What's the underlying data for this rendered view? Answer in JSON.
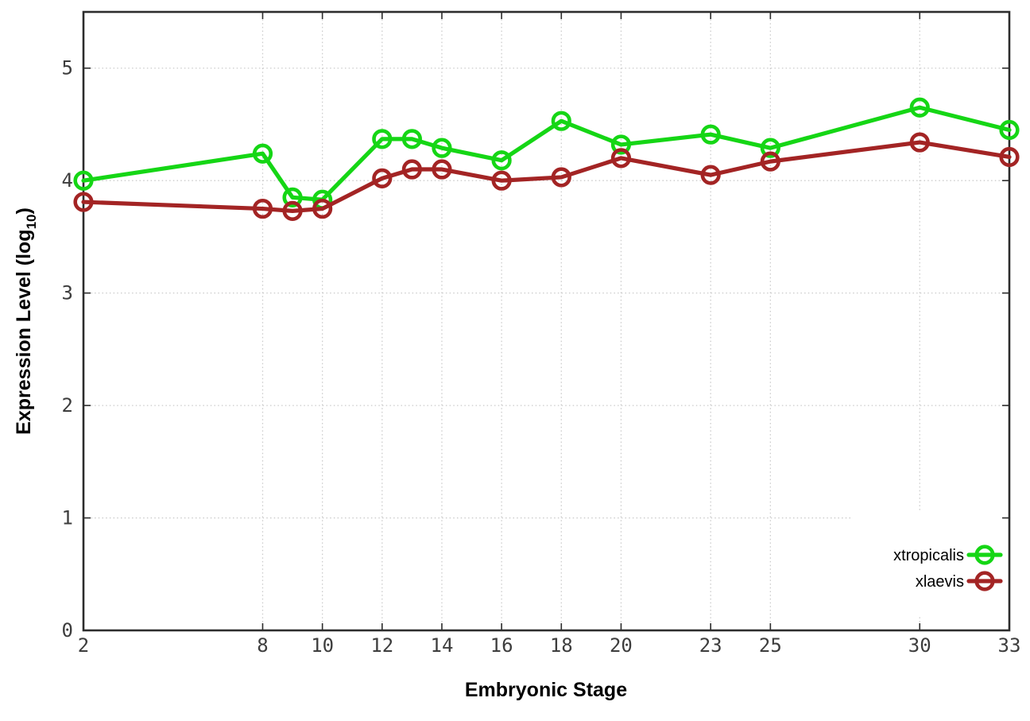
{
  "figure": {
    "background": "#ffffff"
  },
  "style": {
    "axis_color": "#2d2d2d",
    "tick_label_color": "#3d3d3d",
    "grid_color": "#cbcbcb",
    "label_color": "#000000",
    "legend_background": "#ffffff"
  },
  "chart_data": {
    "type": "line",
    "title": "",
    "xlabel": "Embryonic Stage",
    "ylabel": "Expression Level (log10)",
    "ylabel_base": "Expression Level (log",
    "ylabel_sub": "10",
    "ylabel_close": ")",
    "xlim": [
      2,
      33
    ],
    "ylim": [
      0,
      5.5
    ],
    "grid": true,
    "legend_position": "inside-bottom-right",
    "x_ticks": [
      2,
      8,
      10,
      12,
      14,
      16,
      18,
      20,
      23,
      25,
      30,
      33
    ],
    "y_ticks": [
      0,
      1,
      2,
      3,
      4,
      5
    ],
    "x": [
      2,
      8,
      9,
      10,
      12,
      13,
      14,
      16,
      18,
      20,
      23,
      25,
      30,
      33
    ],
    "series": [
      {
        "name": "xtropicalis",
        "color": "#15d615",
        "values": [
          4.0,
          4.24,
          3.85,
          3.83,
          4.37,
          4.37,
          4.29,
          4.18,
          4.53,
          4.32,
          4.41,
          4.29,
          4.65,
          4.45
        ]
      },
      {
        "name": "xlaevis",
        "color": "#a32424",
        "values": [
          3.81,
          3.75,
          3.73,
          3.75,
          4.02,
          4.1,
          4.1,
          4.0,
          4.03,
          4.2,
          4.05,
          4.17,
          4.34,
          4.21
        ]
      }
    ]
  }
}
